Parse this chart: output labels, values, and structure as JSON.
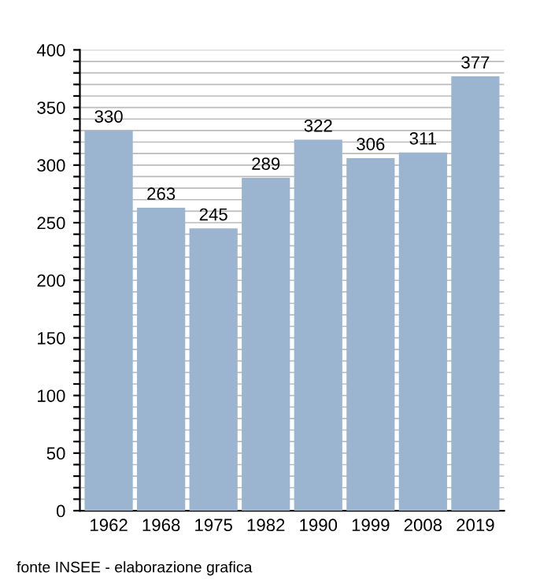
{
  "chart_data": {
    "type": "bar",
    "categories": [
      "1962",
      "1968",
      "1975",
      "1982",
      "1990",
      "1999",
      "2008",
      "2019"
    ],
    "values": [
      330,
      263,
      245,
      289,
      322,
      306,
      311,
      377
    ],
    "color": "#9bb5d0",
    "data_labels": true,
    "ylim": [
      0,
      400
    ],
    "yticks": [
      0,
      {
        "value": 10,
        "label": null
      },
      {
        "value": 20,
        "label": null
      },
      {
        "value": 30,
        "label": null
      },
      {
        "value": 40,
        "label": null
      },
      50,
      {
        "value": 60,
        "label": null
      },
      {
        "value": 70,
        "label": null
      },
      {
        "value": 80,
        "label": null
      },
      {
        "value": 90,
        "label": null
      },
      100,
      {
        "value": 110,
        "label": null
      },
      {
        "value": 120,
        "label": null
      },
      {
        "value": 130,
        "label": null
      },
      {
        "value": 140,
        "label": null
      },
      150,
      {
        "value": 160,
        "label": null
      },
      {
        "value": 170,
        "label": null
      },
      {
        "value": 180,
        "label": null
      },
      {
        "value": 190,
        "label": null
      },
      200,
      {
        "value": 210,
        "label": null
      },
      {
        "value": 220,
        "label": null
      },
      {
        "value": 230,
        "label": null
      },
      {
        "value": 240,
        "label": null
      },
      250,
      {
        "value": 260,
        "label": null
      },
      {
        "value": 270,
        "label": null
      },
      {
        "value": 280,
        "label": null
      },
      {
        "value": 290,
        "label": null
      },
      300,
      {
        "value": 310,
        "label": null
      },
      {
        "value": 320,
        "label": null
      },
      {
        "value": 330,
        "label": null
      },
      {
        "value": 340,
        "label": null
      },
      350,
      {
        "value": 360,
        "label": null
      },
      {
        "value": 370,
        "label": null
      },
      {
        "value": 380,
        "label": null
      },
      {
        "value": 390,
        "label": null
      },
      400
    ],
    "grid": "y",
    "annotations": [
      "fonte INSEE - elaborazione grafica"
    ]
  }
}
